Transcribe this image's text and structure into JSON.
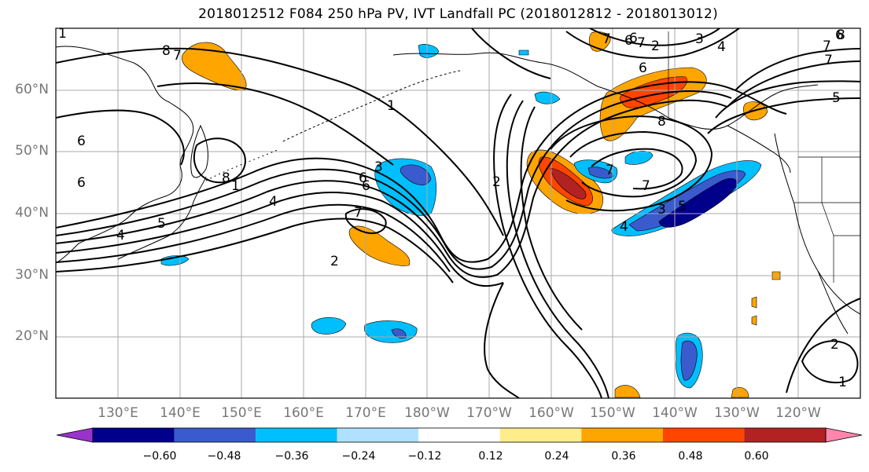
{
  "title": "2018012512 F084 250 hPa PV, IVT Landfall PC (2018012812 - 2018013012)",
  "lat_labels": [
    "60°N",
    "50°N",
    "40°N",
    "30°N",
    "20°N"
  ],
  "lon_labels": [
    "130°E",
    "140°E",
    "150°E",
    "160°E",
    "170°E",
    "180°W",
    "170°W",
    "160°W",
    "150°W",
    "140°W",
    "130°W",
    "120°W"
  ],
  "colorbar": {
    "ticks": [
      "−0.60",
      "−0.48",
      "−0.36",
      "−0.24",
      "−0.12",
      "0.12",
      "0.24",
      "0.36",
      "0.48",
      "0.60"
    ],
    "colors": [
      "#9932cc",
      "#00008b",
      "#3a5bcd",
      "#00bfff",
      "#b0e2ff",
      "#ffffff",
      "#ffec8b",
      "#ffa500",
      "#ff4500",
      "#b22222",
      "#ff85ad"
    ]
  },
  "contour_labels": [
    "8",
    "7",
    "6",
    "5",
    "4",
    "3",
    "2",
    "1",
    "6",
    "1",
    "6",
    "8",
    "7",
    "4",
    "2",
    "7",
    "3",
    "6",
    "7",
    "2",
    "6",
    "7",
    "8",
    "7",
    "4",
    "3",
    "5",
    "1",
    "7",
    "4",
    "6",
    "6",
    "5",
    "7",
    "2",
    "1",
    "8",
    "6"
  ]
}
